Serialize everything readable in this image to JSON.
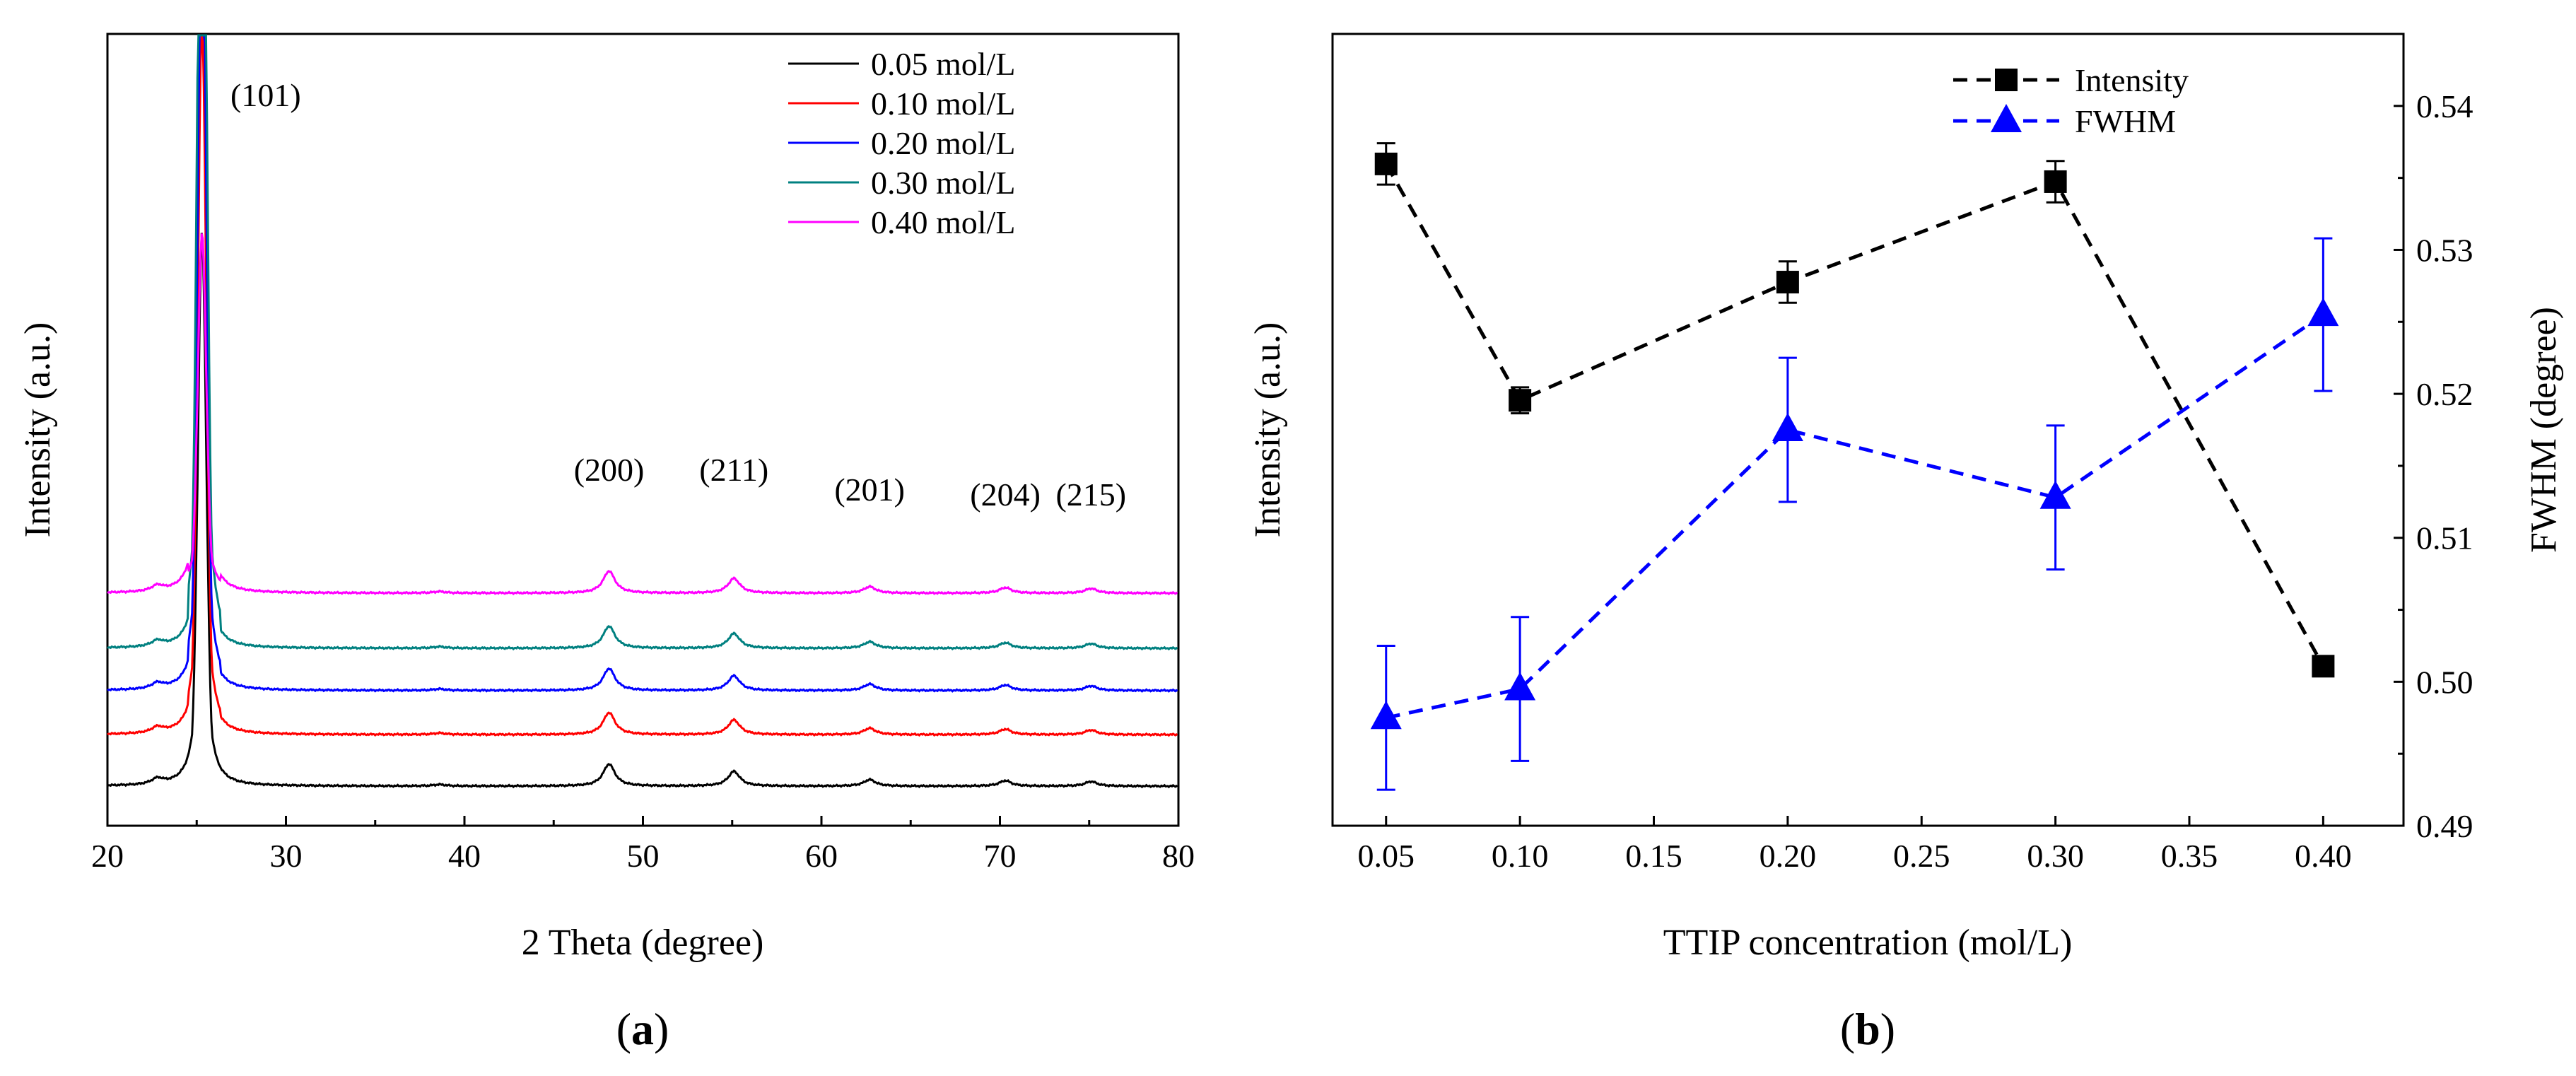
{
  "chart_data": [
    {
      "id": "a",
      "type": "line",
      "xlabel": "2 Theta (degree)",
      "ylabel": "Intensity (a.u.)",
      "xlim": [
        20,
        80
      ],
      "xticks": [
        "20",
        "30",
        "40",
        "50",
        "60",
        "70",
        "80"
      ],
      "panel_label": {
        "open": "(",
        "letter": "a",
        "close": ")"
      },
      "legend_position": "top-right",
      "series": [
        {
          "name": "0.05 mol/L",
          "color": "#000000",
          "offset": 0.0,
          "scale": 1.0
        },
        {
          "name": "0.10 mol/L",
          "color": "#ff0000",
          "offset": 0.28,
          "scale": 1.3
        },
        {
          "name": "0.20 mol/L",
          "color": "#0000ff",
          "offset": 0.52,
          "scale": 1.5
        },
        {
          "name": "0.30 mol/L",
          "color": "#008080",
          "offset": 0.75,
          "scale": 1.9
        },
        {
          "name": "0.40 mol/L",
          "color": "#ff00ff",
          "offset": 1.05,
          "scale": 0.65
        }
      ],
      "peaks": [
        {
          "label": "(101)",
          "position": 25.3,
          "height": 1.0
        },
        {
          "label": "(200)",
          "position": 48.1,
          "height": 0.12
        },
        {
          "label": "(211)",
          "position": 55.1,
          "height": 0.08
        },
        {
          "label": "(201)",
          "position": 62.7,
          "height": 0.035
        },
        {
          "label": "(204)",
          "position": 70.3,
          "height": 0.03
        },
        {
          "label": "(215)",
          "position": 75.1,
          "height": 0.025
        }
      ],
      "minor_peaks": [
        {
          "position": 22.8,
          "height": 0.03
        },
        {
          "position": 38.6,
          "height": 0.008
        }
      ]
    },
    {
      "id": "b",
      "type": "scatter",
      "xlabel": "TTIP concentration (mol/L)",
      "ylabel_left": "Intensity (a.u.)",
      "ylabel_right": "FWHM (degree)",
      "xlim": [
        0.03,
        0.43
      ],
      "xticks": [
        "0.05",
        "0.10",
        "0.15",
        "0.20",
        "0.25",
        "0.30",
        "0.35",
        "0.40"
      ],
      "ylim_right": [
        0.49,
        0.545
      ],
      "yticks_right": [
        "0.49",
        "0.50",
        "0.51",
        "0.52",
        "0.53",
        "0.54"
      ],
      "panel_label": {
        "open": "(",
        "letter": "b",
        "close": ")"
      },
      "legend_position": "top-center",
      "x": [
        0.05,
        0.1,
        0.2,
        0.3,
        0.4
      ],
      "series": [
        {
          "name": "Intensity",
          "axis": "left",
          "color": "#000000",
          "marker": "square",
          "values": [
            0.9,
            0.5,
            0.7,
            0.87,
            0.05
          ],
          "errors": [
            0.035,
            0.022,
            0.035,
            0.035,
            0.012
          ],
          "ylim": [
            -0.22,
            1.12
          ]
        },
        {
          "name": "FWHM",
          "axis": "right",
          "color": "#0000ff",
          "marker": "triangle",
          "values": [
            0.4975,
            0.4995,
            0.5175,
            0.5128,
            0.5255
          ],
          "errors": [
            0.005,
            0.005,
            0.005,
            0.005,
            0.0053
          ]
        }
      ]
    }
  ]
}
